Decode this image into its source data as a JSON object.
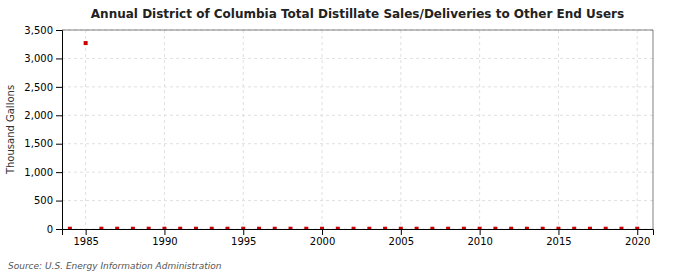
{
  "chart_data": {
    "type": "scatter",
    "title": "Annual District of Columbia Total Distillate Sales/Deliveries to Other End Users",
    "ylabel": "Thousand Gallons",
    "source": "Source: U.S. Energy Information Administration",
    "color": "#cc0000",
    "marker": "square",
    "grid": true,
    "xlim": [
      1983.5,
      2021
    ],
    "ylim": [
      0,
      3500
    ],
    "xticks": [
      1985,
      1990,
      1995,
      2000,
      2005,
      2010,
      2015,
      2020
    ],
    "yticks": [
      0,
      500,
      {
        "value": 1000,
        "label": "1,000"
      },
      {
        "value": 1500,
        "label": "1,500"
      },
      {
        "value": 2000,
        "label": "2,000"
      },
      {
        "value": 2500,
        "label": "2,500"
      },
      {
        "value": 3000,
        "label": "3,000"
      },
      {
        "value": 3500,
        "label": "3,500"
      }
    ],
    "x": [
      1984,
      1985,
      1986,
      1987,
      1988,
      1989,
      1990,
      1991,
      1992,
      1993,
      1994,
      1995,
      1996,
      1997,
      1998,
      1999,
      2000,
      2001,
      2002,
      2003,
      2004,
      2005,
      2006,
      2007,
      2008,
      2009,
      2010,
      2011,
      2012,
      2013,
      2014,
      2015,
      2016,
      2017,
      2018,
      2019,
      2020
    ],
    "values": [
      5,
      3270,
      5,
      5,
      5,
      5,
      5,
      5,
      5,
      5,
      5,
      5,
      5,
      5,
      5,
      5,
      5,
      5,
      5,
      5,
      5,
      5,
      5,
      5,
      5,
      5,
      5,
      5,
      5,
      5,
      5,
      5,
      5,
      5,
      5,
      5,
      5
    ]
  }
}
